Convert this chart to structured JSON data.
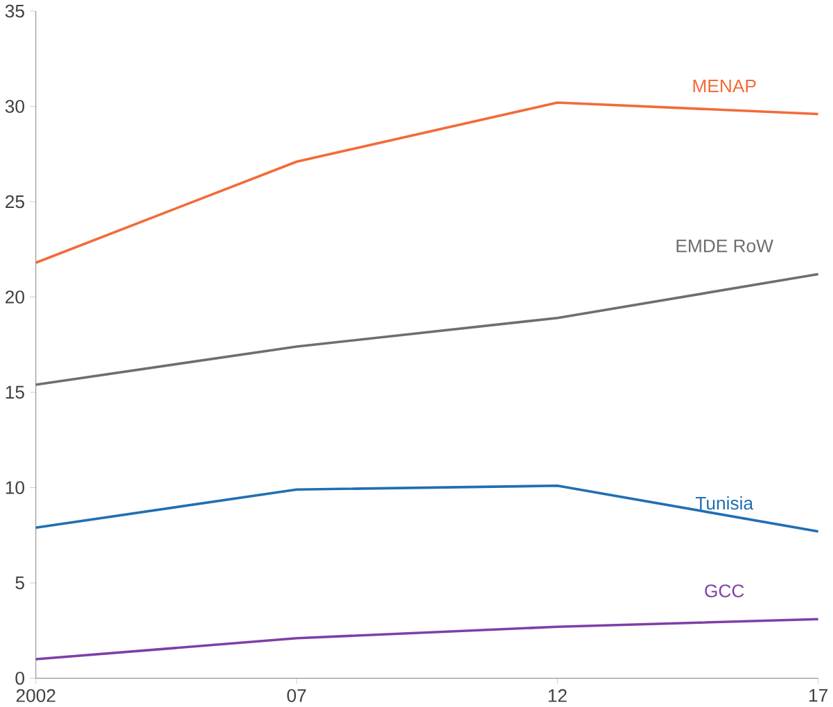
{
  "chart_data": {
    "type": "line",
    "x": [
      2002,
      2007,
      2012,
      2017
    ],
    "xlim": [
      2002,
      2017
    ],
    "xticks": [
      {
        "value": 2002,
        "label": "2002"
      },
      {
        "value": 2007,
        "label": "07"
      },
      {
        "value": 2012,
        "label": "12"
      },
      {
        "value": 2017,
        "label": "17"
      }
    ],
    "ylim": [
      0,
      35
    ],
    "yticks": [
      0,
      5,
      10,
      15,
      20,
      25,
      30,
      35
    ],
    "grid": false,
    "legend": false,
    "marker": "none",
    "line_style": "solid",
    "series": [
      {
        "name": "MENAP",
        "color": "#f26b38",
        "values": [
          21.8,
          27.1,
          30.2,
          29.6
        ]
      },
      {
        "name": "EMDE RoW",
        "color": "#6d6e71",
        "values": [
          15.4,
          17.4,
          18.9,
          21.2
        ]
      },
      {
        "name": "Tunisia",
        "color": "#1f6fb2",
        "values": [
          7.9,
          9.9,
          10.1,
          7.7
        ]
      },
      {
        "name": "GCC",
        "color": "#7e3fa6",
        "values": [
          1.0,
          2.1,
          2.7,
          3.1
        ]
      }
    ]
  }
}
